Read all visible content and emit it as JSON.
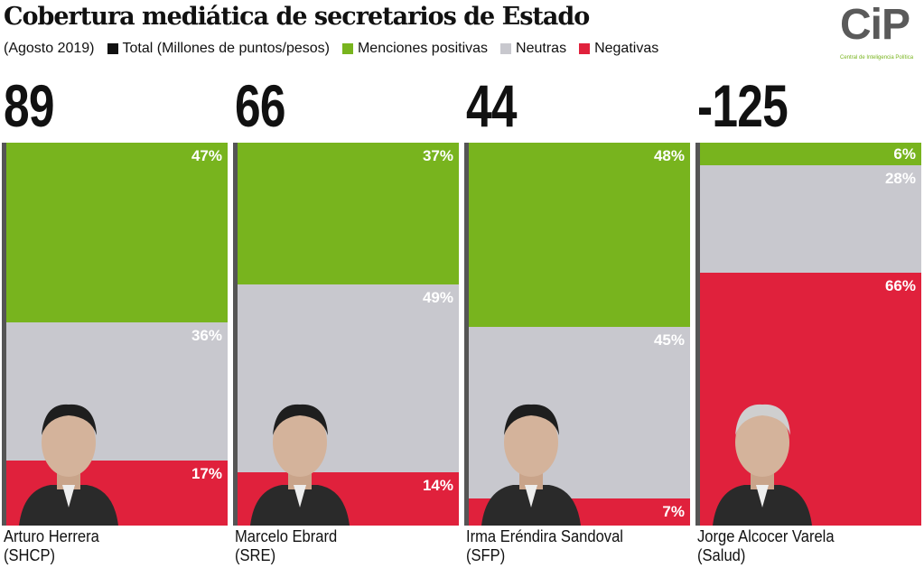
{
  "title": "Cobertura mediática de secretarios de Estado",
  "legend": {
    "period": "(Agosto 2019)",
    "items": [
      {
        "label": "Total (Millones de puntos/pesos)",
        "color": "#111111"
      },
      {
        "label": "Menciones  positivas",
        "color": "#78b41e"
      },
      {
        "label": "Neutras",
        "color": "#c8c8ce"
      },
      {
        "label": "Negativas",
        "color": "#e0213c"
      }
    ]
  },
  "logo": {
    "text": "CiP",
    "subtitle": "Central de Inteligencia Política"
  },
  "chart_data": {
    "type": "bar",
    "stacked": true,
    "categories": [
      "Arturo Herrera (SHCP)",
      "Marcelo Ebrard (SRE)",
      "Irma Eréndira Sandoval (SFP)",
      "Jorge Alcocer Varela (Salud)"
    ],
    "people": [
      {
        "name": "Arturo Herrera",
        "dept": "(SHCP)",
        "total": "89"
      },
      {
        "name": "Marcelo Ebrard",
        "dept": "(SRE)",
        "total": "66"
      },
      {
        "name": "Irma Eréndira Sandoval",
        "dept": "(SFP)",
        "total": "44"
      },
      {
        "name": "Jorge Alcocer Varela",
        "dept": "(Salud)",
        "total": "-125"
      }
    ],
    "series": [
      {
        "name": "Menciones  positivas",
        "color": "#78b41e",
        "values": [
          47,
          37,
          48,
          6
        ]
      },
      {
        "name": "Neutras",
        "color": "#c8c8ce",
        "values": [
          36,
          49,
          45,
          28
        ]
      },
      {
        "name": "Negativas",
        "color": "#e0213c",
        "values": [
          17,
          14,
          7,
          66
        ]
      }
    ],
    "ylim": [
      0,
      100
    ]
  }
}
